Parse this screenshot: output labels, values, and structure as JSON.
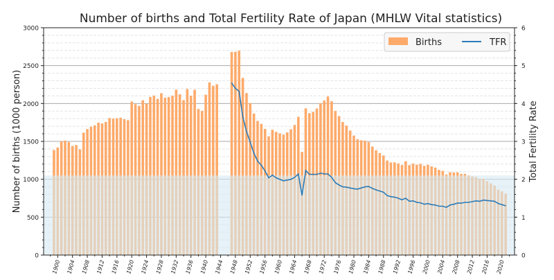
{
  "chart_data": {
    "type": "bar+line",
    "title": "Number of births and Total Fertility Rate of Japan (MHLW Vital statistics)",
    "xlabel": "",
    "ylabel_left": "Number of births (1000 person)",
    "ylabel_right": "Total Fertility Rate",
    "ylim_left": [
      0,
      3000
    ],
    "ylim_right": [
      0,
      6
    ],
    "yticks_left": [
      0,
      500,
      1000,
      1500,
      2000,
      2500,
      3000
    ],
    "yticks_right": [
      0,
      1,
      2,
      3,
      4,
      5,
      6
    ],
    "xtick_labels": [
      "1900",
      "1904",
      "1908",
      "1912",
      "1916",
      "1920",
      "1924",
      "1928",
      "1932",
      "1936",
      "1940",
      "1944",
      "1948",
      "1952",
      "1956",
      "1960",
      "1964",
      "1968",
      "1972",
      "1976",
      "1980",
      "1984",
      "1988",
      "1992",
      "1996",
      "2000",
      "2004",
      "2008",
      "2012",
      "2016",
      "2020"
    ],
    "grid": true,
    "legend_position": "top-right",
    "shaded_region_tfr": [
      0,
      2.1
    ],
    "colors": {
      "births": "#fdaa6a",
      "tfr": "#2b7bb9",
      "shade": "#d5e9f1"
    },
    "series": [
      {
        "name": "Births",
        "type": "bar",
        "start_year": 1899,
        "values": [
          1386,
          1420,
          1501,
          1510,
          1490,
          1440,
          1452,
          1395,
          1615,
          1663,
          1693,
          1712,
          1747,
          1737,
          1757,
          1808,
          1800,
          1805,
          1813,
          1792,
          1779,
          2026,
          1991,
          1969,
          2043,
          1998,
          2086,
          2105,
          2061,
          2136,
          2077,
          2085,
          2103,
          2183,
          2121,
          2044,
          2191,
          2102,
          2181,
          1928,
          1902,
          2116,
          2278,
          2234,
          2254,
          null,
          null,
          null,
          2679,
          2682,
          2697,
          2338,
          2138,
          2005,
          1868,
          1770,
          1731,
          1665,
          1567,
          1653,
          1626,
          1606,
          1589,
          1619,
          1660,
          1717,
          1824,
          1361,
          1936,
          1872,
          1890,
          1934,
          2001,
          2039,
          2092,
          2030,
          1901,
          1833,
          1755,
          1709,
          1643,
          1577,
          1529,
          1515,
          1509,
          1490,
          1432,
          1383,
          1347,
          1314,
          1247,
          1222,
          1223,
          1209,
          1188,
          1238,
          1187,
          1207,
          1192,
          1203,
          1178,
          1191,
          1171,
          1154,
          1124,
          1111,
          1063,
          1093,
          1090,
          1091,
          1070,
          1071,
          1051,
          1037,
          1030,
          1004,
          1006,
          977,
          946,
          918,
          865,
          841,
          812
        ]
      },
      {
        "name": "TFR",
        "type": "line",
        "start_year": 1947,
        "values": [
          4.54,
          4.4,
          4.32,
          3.65,
          3.26,
          2.98,
          2.69,
          2.48,
          2.37,
          2.22,
          2.04,
          2.11,
          2.04,
          2.0,
          1.96,
          1.98,
          2.0,
          2.05,
          2.14,
          1.58,
          2.23,
          2.13,
          2.13,
          2.13,
          2.16,
          2.14,
          2.14,
          2.05,
          1.91,
          1.85,
          1.8,
          1.79,
          1.77,
          1.75,
          1.74,
          1.77,
          1.8,
          1.81,
          1.76,
          1.72,
          1.69,
          1.66,
          1.57,
          1.54,
          1.53,
          1.5,
          1.46,
          1.5,
          1.42,
          1.43,
          1.39,
          1.38,
          1.34,
          1.36,
          1.33,
          1.32,
          1.29,
          1.29,
          1.26,
          1.32,
          1.34,
          1.37,
          1.37,
          1.39,
          1.39,
          1.41,
          1.43,
          1.42,
          1.45,
          1.44,
          1.43,
          1.42,
          1.36,
          1.33,
          1.3
        ]
      }
    ]
  }
}
